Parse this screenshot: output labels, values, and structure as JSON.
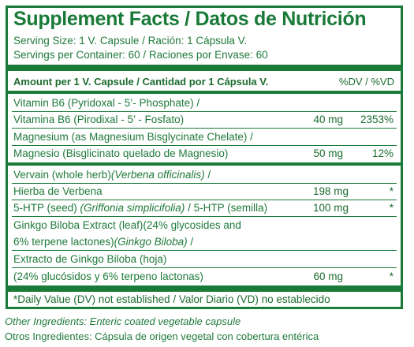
{
  "title": "Supplement Facts / Datos de Nutrición",
  "serving_size": "Serving Size: 1 V. Capsule / Ración: 1 Cápsula V.",
  "servings_per_container": "Servings per Container: 60 / Raciones por Envase: 60",
  "header": {
    "amount_label": "Amount per 1 V. Capsule / Cantidad por 1 Cápsula V.",
    "dv_label": "%DV / %VD"
  },
  "ingredients": [
    {
      "line1": "Vitamin B6 (Pyridoxal - 5’- Phosphate) /",
      "line2": "Vitamina B6 (Pirodixal - 5’ - Fosfato)",
      "amount": "40 mg",
      "dv": "2353%"
    },
    {
      "line1": "Magnesium (as Magnesium Bisglycinate Chelate) /",
      "line2": "Magnesio (Bisglicinato quelado de Magnesio)",
      "amount": "50 mg",
      "dv": "12%"
    },
    {
      "line1a": "Vervain (whole herb)",
      "line1b": "(Verbena officinalis)",
      "line1c": " /",
      "line2": "Hierba de Verbena",
      "amount": "198 mg",
      "dv": "*"
    },
    {
      "line1a": "5-HTP (seed) ",
      "line1b": "(Griffonia simplicifolia)",
      "line1c": " / 5-HTP (semilla)",
      "amount": "100 mg",
      "dv": "*"
    },
    {
      "line1": "Ginkgo Biloba Extract (leaf)(24% glycosides and",
      "line2a": "6% terpene lactones)",
      "line2b": "(Ginkgo Biloba)",
      "line2c": " /",
      "line3": "Extracto de Ginkgo Biloba (hoja)",
      "line4": "(24% glucósidos y 6% terpeno lactonas)",
      "amount": "60 mg",
      "dv": "*"
    }
  ],
  "footnote": "*Daily Value (DV) not established / Valor Diario (VD) no establecido",
  "other_ingredients": "Other Ingredients: Enteric coated vegetable capsule",
  "otros_ingredientes": "Otros Ingredientes: Cápsula de origen vegetal con cobertura entérica",
  "colors": {
    "brand_green": "#1a7a38",
    "text_green": "#1f7a3a"
  }
}
